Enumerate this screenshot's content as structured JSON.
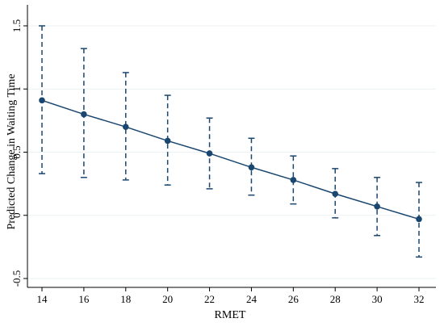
{
  "chart_data": {
    "type": "line",
    "title": "",
    "xlabel": "RMET",
    "ylabel": "Predicted Change in Waiting Time",
    "x": [
      14,
      16,
      18,
      20,
      22,
      24,
      26,
      28,
      30,
      32
    ],
    "xlim": [
      14,
      32
    ],
    "ylim": [
      -0.5,
      1.5
    ],
    "xticks": [
      "14",
      "16",
      "18",
      "20",
      "22",
      "24",
      "26",
      "28",
      "30",
      "32"
    ],
    "yticks": [
      "-0.5",
      "0",
      "0.5",
      "1",
      "1.5"
    ],
    "grid": true,
    "series": [
      {
        "name": "",
        "values": [
          0.91,
          0.8,
          0.7,
          0.59,
          0.49,
          0.38,
          0.28,
          0.17,
          0.07,
          -0.03
        ],
        "ci_upper": [
          1.5,
          1.32,
          1.13,
          0.95,
          0.77,
          0.61,
          0.47,
          0.37,
          0.3,
          0.26
        ],
        "ci_lower": [
          0.33,
          0.3,
          0.28,
          0.24,
          0.21,
          0.16,
          0.09,
          -0.02,
          -0.16,
          -0.33
        ]
      }
    ],
    "colors": {
      "line": "#1a476f",
      "grid": "#eaf2f3"
    }
  }
}
